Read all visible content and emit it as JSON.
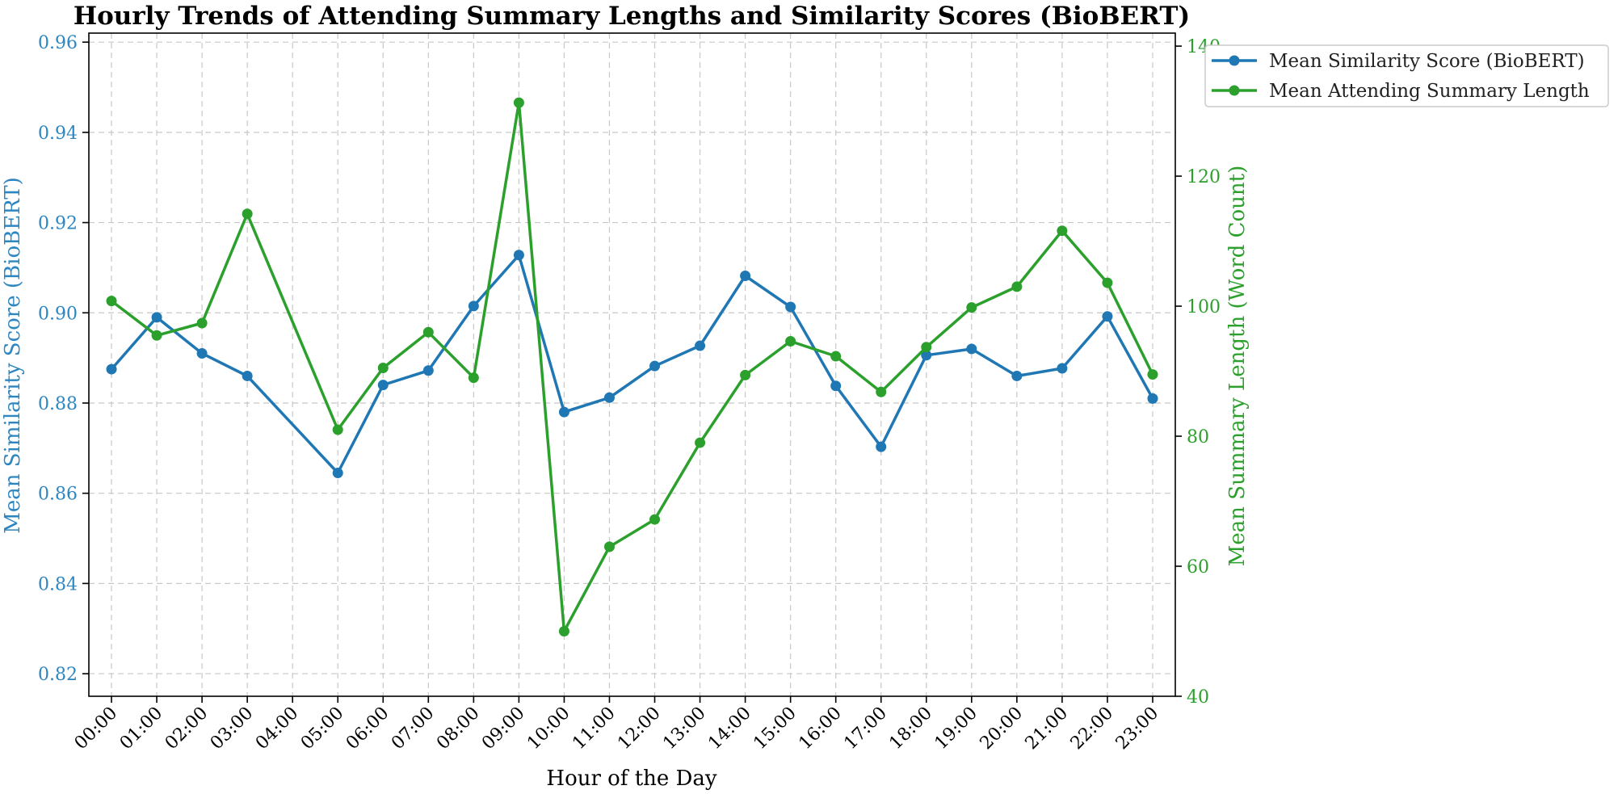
{
  "chart_data": {
    "type": "line",
    "title": "Hourly Trends of Attending Summary Lengths and Similarity Scores (BioBERT)",
    "xlabel": "Hour of the Day",
    "ylabel_left": "Mean Similarity Score (BioBERT)",
    "ylabel_right": "Mean Summary Length (Word Count)",
    "categories": [
      "00:00",
      "01:00",
      "02:00",
      "03:00",
      "04:00",
      "05:00",
      "06:00",
      "07:00",
      "08:00",
      "09:00",
      "10:00",
      "11:00",
      "12:00",
      "13:00",
      "14:00",
      "15:00",
      "16:00",
      "17:00",
      "18:00",
      "19:00",
      "20:00",
      "21:00",
      "22:00",
      "23:00"
    ],
    "ylim_left": [
      0.815,
      0.962
    ],
    "ylim_right": [
      40,
      142
    ],
    "yticks_left": [
      "0.82",
      "0.84",
      "0.86",
      "0.88",
      "0.90",
      "0.92",
      "0.94",
      "0.96"
    ],
    "yticks_right": [
      "40",
      "60",
      "80",
      "100",
      "120",
      "140"
    ],
    "grid": true,
    "legend_position": "upper-right-outside",
    "series": [
      {
        "name": "Mean Similarity Score (BioBERT)",
        "axis": "left",
        "color": "#1f77b4",
        "points": [
          [
            "00:00",
            0.8875
          ],
          [
            "01:00",
            0.899
          ],
          [
            "02:00",
            0.891
          ],
          [
            "03:00",
            0.886
          ],
          [
            "05:00",
            0.8645
          ],
          [
            "06:00",
            0.884
          ],
          [
            "07:00",
            0.8872
          ],
          [
            "08:00",
            0.9015
          ],
          [
            "09:00",
            0.9128
          ],
          [
            "10:00",
            0.878
          ],
          [
            "11:00",
            0.8812
          ],
          [
            "12:00",
            0.8882
          ],
          [
            "13:00",
            0.8927
          ],
          [
            "14:00",
            0.9082
          ],
          [
            "15:00",
            0.9013
          ],
          [
            "16:00",
            0.8838
          ],
          [
            "17:00",
            0.8703
          ],
          [
            "18:00",
            0.8906
          ],
          [
            "19:00",
            0.892
          ],
          [
            "20:00",
            0.886
          ],
          [
            "21:00",
            0.8877
          ],
          [
            "22:00",
            0.8992
          ],
          [
            "23:00",
            0.881
          ]
        ]
      },
      {
        "name": "Mean Attending Summary Length",
        "axis": "right",
        "color": "#2ca02c",
        "points": [
          [
            "00:00",
            100.8
          ],
          [
            "01:00",
            95.5
          ],
          [
            "02:00",
            97.4
          ],
          [
            "03:00",
            114.2
          ],
          [
            "05:00",
            81.0
          ],
          [
            "06:00",
            90.5
          ],
          [
            "07:00",
            96.0
          ],
          [
            "08:00",
            89.0
          ],
          [
            "09:00",
            131.3
          ],
          [
            "10:00",
            50.0
          ],
          [
            "11:00",
            63.0
          ],
          [
            "12:00",
            67.2
          ],
          [
            "13:00",
            79.0
          ],
          [
            "14:00",
            89.4
          ],
          [
            "15:00",
            94.6
          ],
          [
            "16:00",
            92.3
          ],
          [
            "17:00",
            86.8
          ],
          [
            "18:00",
            93.7
          ],
          [
            "19:00",
            99.8
          ],
          [
            "20:00",
            103.0
          ],
          [
            "21:00",
            111.6
          ],
          [
            "22:00",
            103.6
          ],
          [
            "23:00",
            89.5
          ]
        ]
      }
    ]
  },
  "colors": {
    "left_axis": "#2e86c1",
    "right_axis": "#2ca02c"
  }
}
